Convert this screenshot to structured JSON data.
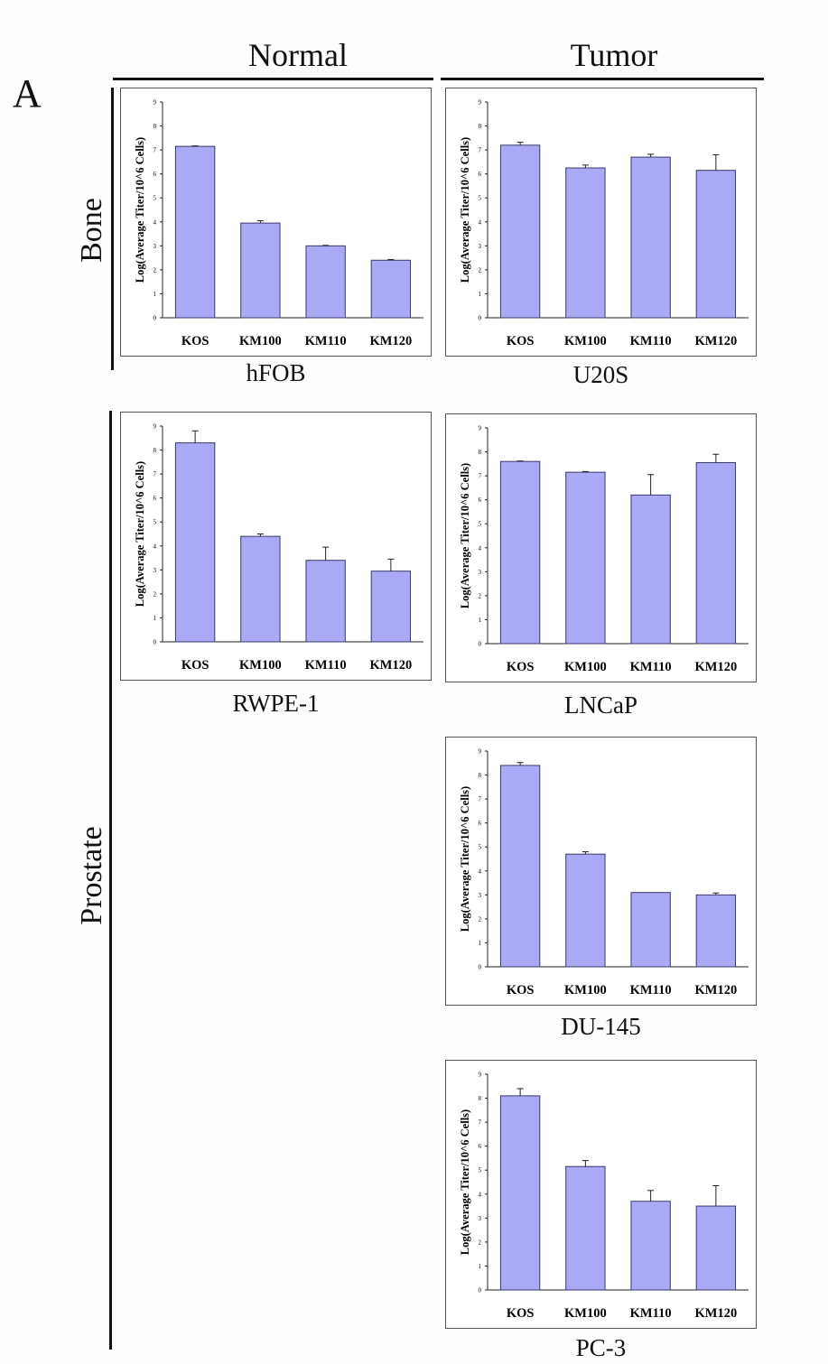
{
  "figure_letter": "A",
  "column_headers": {
    "normal": "Normal",
    "tumor": "Tumor"
  },
  "row_labels": {
    "bone": "Bone",
    "prostate": "Prostate"
  },
  "colors": {
    "bar_fill": "#a9a9f5",
    "bar_stroke": "#3a3a6a"
  },
  "chart_data": [
    {
      "type": "bar",
      "cell_line": "hFOB",
      "categories": [
        "KOS",
        "KM100",
        "KM110",
        "KM120"
      ],
      "values": [
        7.15,
        3.95,
        3.0,
        2.4
      ],
      "errors": [
        0.02,
        0.1,
        0.02,
        0.03
      ],
      "ylabel": "Log(Average Titer/10^6 Cells)",
      "ylim": [
        0,
        9
      ],
      "yticks": [
        "0",
        "1",
        "2",
        "3",
        "4",
        "5",
        "6",
        "7",
        "8",
        "9"
      ],
      "grid": false
    },
    {
      "type": "bar",
      "cell_line": "U20S",
      "categories": [
        "KOS",
        "KM100",
        "KM110",
        "KM120"
      ],
      "values": [
        7.2,
        6.25,
        6.7,
        6.15
      ],
      "errors": [
        0.12,
        0.12,
        0.12,
        0.65
      ],
      "ylabel": "Log(Average Titer/10^6 Cells)",
      "ylim": [
        0,
        9
      ],
      "yticks": [
        "0",
        "1",
        "2",
        "3",
        "4",
        "5",
        "6",
        "7",
        "8",
        "9"
      ],
      "grid": false
    },
    {
      "type": "bar",
      "cell_line": "RWPE-1",
      "categories": [
        "KOS",
        "KM100",
        "KM110",
        "KM120"
      ],
      "values": [
        8.3,
        4.4,
        3.4,
        2.95
      ],
      "errors": [
        0.5,
        0.1,
        0.55,
        0.5
      ],
      "ylabel": "Log(Average Titer/10^6 Cells)",
      "ylim": [
        0,
        9
      ],
      "yticks": [
        "0",
        "1",
        "2",
        "3",
        "4",
        "5",
        "6",
        "7",
        "8",
        "9"
      ],
      "grid": false
    },
    {
      "type": "bar",
      "cell_line": "LNCaP",
      "categories": [
        "KOS",
        "KM100",
        "KM110",
        "KM120"
      ],
      "values": [
        7.6,
        7.15,
        6.2,
        7.55
      ],
      "errors": [
        0.02,
        0.03,
        0.85,
        0.35
      ],
      "ylabel": "Log(Average Titer/10^6 Cells)",
      "ylim": [
        0,
        9
      ],
      "yticks": [
        "0",
        "1",
        "2",
        "3",
        "4",
        "5",
        "6",
        "7",
        "8",
        "9"
      ],
      "grid": false
    },
    {
      "type": "bar",
      "cell_line": "DU-145",
      "categories": [
        "KOS",
        "KM100",
        "KM110",
        "KM120"
      ],
      "values": [
        8.4,
        4.7,
        3.1,
        3.0
      ],
      "errors": [
        0.12,
        0.1,
        0.0,
        0.08
      ],
      "ylabel": "Log(Average Titer/10^6 Cells)",
      "ylim": [
        0,
        9
      ],
      "yticks": [
        "0",
        "1",
        "2",
        "3",
        "4",
        "5",
        "6",
        "7",
        "8",
        "9"
      ],
      "grid": false
    },
    {
      "type": "bar",
      "cell_line": "PC-3",
      "categories": [
        "KOS",
        "KM100",
        "KM110",
        "KM120"
      ],
      "values": [
        8.1,
        5.15,
        3.7,
        3.5
      ],
      "errors": [
        0.3,
        0.25,
        0.45,
        0.85
      ],
      "ylabel": "Log(Average Titer/10^6 Cells)",
      "ylim": [
        0,
        9
      ],
      "yticks": [
        "0",
        "1",
        "2",
        "3",
        "4",
        "5",
        "6",
        "7",
        "8",
        "9"
      ],
      "grid": false
    }
  ]
}
